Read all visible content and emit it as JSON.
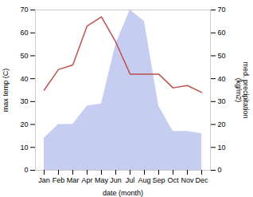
{
  "chart_data": {
    "type": "line",
    "categories": [
      "Jan",
      "Feb",
      "Mar",
      "Apr",
      "May",
      "Jun",
      "Jul",
      "Aug",
      "Sep",
      "Oct",
      "Nov",
      "Dec"
    ],
    "xlabel": "date (month)",
    "ylabel": "max temp (C)",
    "y2label": "med. precipitation\n(kg/m2)",
    "series": [
      {
        "type": "line",
        "color": "#c0504d",
        "values": [
          35,
          44,
          46,
          63,
          67,
          56,
          42,
          42,
          42,
          36,
          37,
          34
        ]
      },
      {
        "type": "area",
        "color": "#c5cdf0",
        "axis": "y2",
        "values": [
          14,
          20,
          20,
          28,
          29,
          55,
          70,
          65,
          28,
          17,
          17,
          16
        ]
      }
    ],
    "ylim": [
      0,
      70
    ],
    "yticks": [
      0,
      10,
      20,
      30,
      40,
      50,
      60,
      70
    ],
    "y2lim": [
      0,
      70
    ],
    "y2ticks": [
      0,
      10,
      20,
      30,
      40,
      50,
      60,
      70
    ]
  }
}
